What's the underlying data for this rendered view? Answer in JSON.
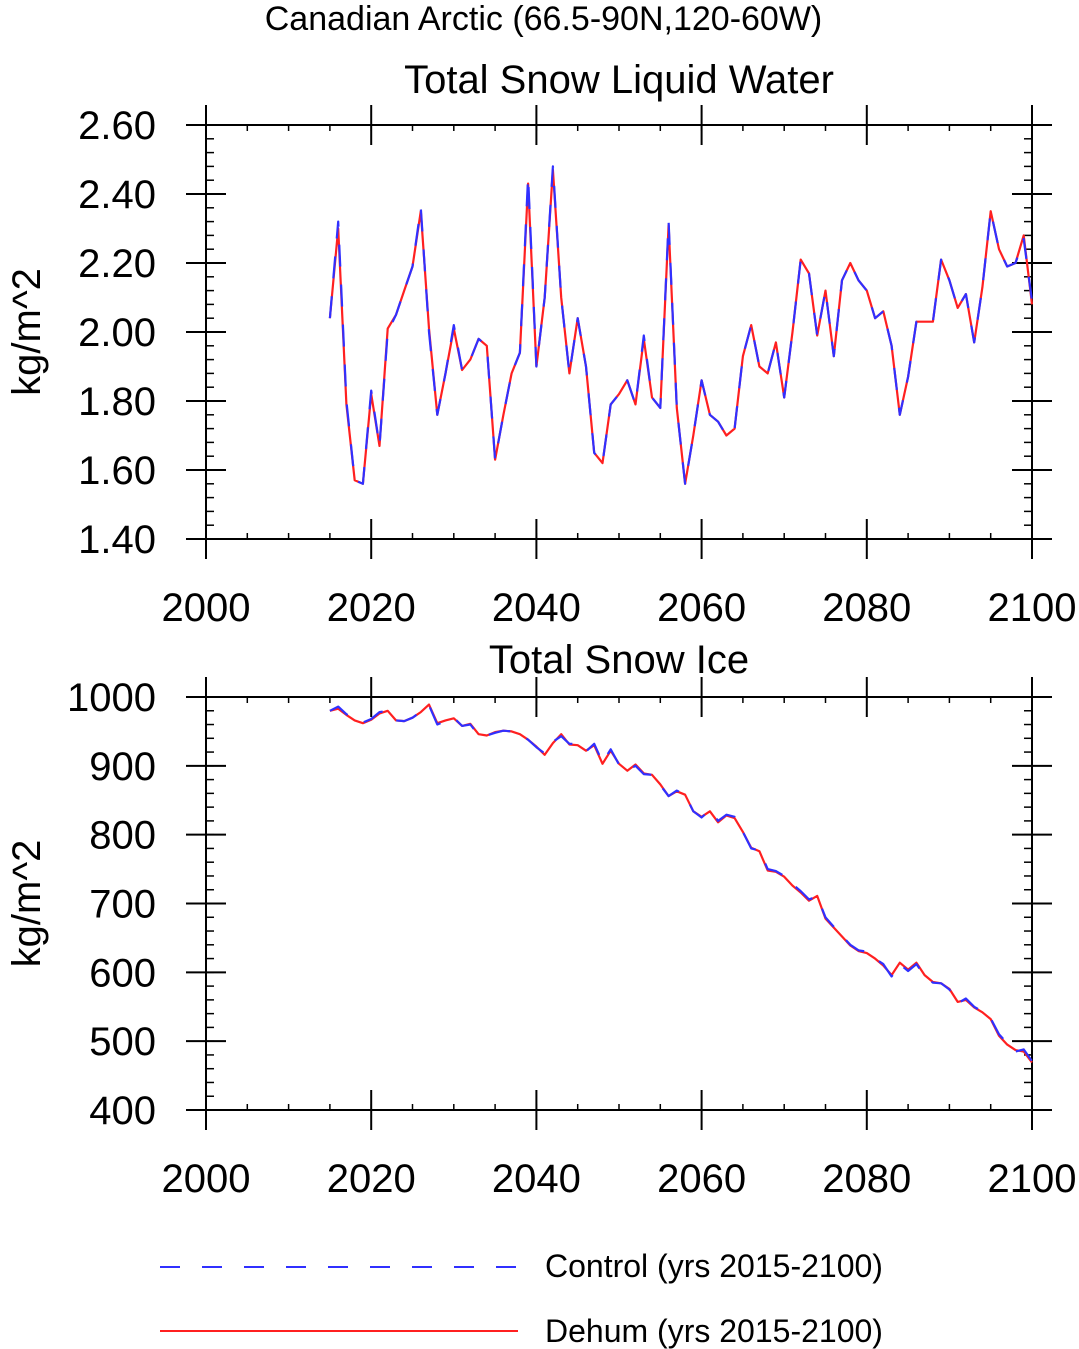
{
  "page_title": "Canadian Arctic (66.5-90N,120-60W)",
  "colors": {
    "control": "#3030ff",
    "dehum": "#ff2020"
  },
  "legend": [
    {
      "label": "Control (yrs 2015-2100)",
      "color": "#3030ff",
      "style": "dashed"
    },
    {
      "label": "Dehum (yrs 2015-2100)",
      "color": "#ff2020",
      "style": "solid"
    }
  ],
  "chart_data": [
    {
      "type": "line",
      "title": "Total Snow Liquid Water",
      "xlabel": "",
      "ylabel": "kg/m^2",
      "xlim": [
        2000,
        2100
      ],
      "ylim": [
        1.4,
        2.6
      ],
      "xticks": [
        2000,
        2020,
        2040,
        2060,
        2080,
        2100
      ],
      "yticks": [
        1.4,
        1.6,
        1.8,
        2.0,
        2.2,
        2.4,
        2.6
      ],
      "ytick_labels": [
        "1.40",
        "1.60",
        "1.80",
        "2.00",
        "2.20",
        "2.40",
        "2.60"
      ],
      "x": [
        2015,
        2016,
        2017,
        2018,
        2019,
        2020,
        2021,
        2022,
        2023,
        2024,
        2025,
        2026,
        2027,
        2028,
        2029,
        2030,
        2031,
        2032,
        2033,
        2034,
        2035,
        2036,
        2037,
        2038,
        2039,
        2040,
        2041,
        2042,
        2043,
        2044,
        2045,
        2046,
        2047,
        2048,
        2049,
        2050,
        2051,
        2052,
        2053,
        2054,
        2055,
        2056,
        2057,
        2058,
        2059,
        2060,
        2061,
        2062,
        2063,
        2064,
        2065,
        2066,
        2067,
        2068,
        2069,
        2070,
        2071,
        2072,
        2073,
        2074,
        2075,
        2076,
        2077,
        2078,
        2079,
        2080,
        2081,
        2082,
        2083,
        2084,
        2085,
        2086,
        2087,
        2088,
        2089,
        2090,
        2091,
        2092,
        2093,
        2094,
        2095,
        2096,
        2097,
        2098,
        2099,
        2100
      ],
      "series": [
        {
          "name": "Control (yrs 2015-2100)",
          "values": [
            2.04,
            2.32,
            1.8,
            1.57,
            1.56,
            1.83,
            1.67,
            2.0,
            2.05,
            2.12,
            2.19,
            2.36,
            2.0,
            1.76,
            1.88,
            2.02,
            1.89,
            1.92,
            1.98,
            1.96,
            1.63,
            1.76,
            1.88,
            1.94,
            2.45,
            1.9,
            2.1,
            2.48,
            2.1,
            1.88,
            2.04,
            1.9,
            1.65,
            1.62,
            1.79,
            1.82,
            1.86,
            1.79,
            1.99,
            1.81,
            1.78,
            2.32,
            1.78,
            1.56,
            1.7,
            1.86,
            1.76,
            1.74,
            1.7,
            1.72,
            1.93,
            2.02,
            1.9,
            1.88,
            1.97,
            1.81,
            2.0,
            2.21,
            2.17,
            1.99,
            2.12,
            1.93,
            2.15,
            2.2,
            2.15,
            2.12,
            2.04,
            2.06,
            1.96,
            1.76,
            1.87,
            2.03,
            2.03,
            2.03,
            2.21,
            2.15,
            2.07,
            2.11,
            1.97,
            2.13,
            2.35,
            2.24,
            2.19,
            2.2,
            2.27,
            2.09
          ]
        },
        {
          "name": "Dehum (yrs 2015-2100)",
          "values": [
            2.04,
            2.3,
            1.79,
            1.57,
            1.56,
            1.82,
            1.67,
            2.01,
            2.05,
            2.12,
            2.19,
            2.35,
            2.01,
            1.76,
            1.88,
            2.01,
            1.89,
            1.92,
            1.98,
            1.96,
            1.63,
            1.76,
            1.88,
            1.94,
            2.43,
            1.9,
            2.1,
            2.47,
            2.1,
            1.88,
            2.04,
            1.9,
            1.65,
            1.62,
            1.79,
            1.82,
            1.86,
            1.79,
            1.98,
            1.81,
            1.78,
            2.31,
            1.78,
            1.56,
            1.7,
            1.86,
            1.76,
            1.74,
            1.7,
            1.72,
            1.93,
            2.02,
            1.9,
            1.88,
            1.97,
            1.81,
            2.0,
            2.21,
            2.17,
            1.99,
            2.12,
            1.93,
            2.15,
            2.2,
            2.15,
            2.12,
            2.04,
            2.06,
            1.96,
            1.76,
            1.87,
            2.03,
            2.03,
            2.03,
            2.21,
            2.15,
            2.07,
            2.11,
            1.97,
            2.13,
            2.35,
            2.24,
            2.19,
            2.2,
            2.28,
            2.08
          ]
        }
      ]
    },
    {
      "type": "line",
      "title": "Total Snow Ice",
      "xlabel": "",
      "ylabel": "kg/m^2",
      "xlim": [
        2000,
        2100
      ],
      "ylim": [
        400,
        1000
      ],
      "xticks": [
        2000,
        2020,
        2040,
        2060,
        2080,
        2100
      ],
      "yticks": [
        400,
        500,
        600,
        700,
        800,
        900,
        1000
      ],
      "ytick_labels": [
        "400",
        "500",
        "600",
        "700",
        "800",
        "900",
        "1000"
      ],
      "x": [
        2015,
        2016,
        2017,
        2018,
        2019,
        2020,
        2021,
        2022,
        2023,
        2024,
        2025,
        2026,
        2027,
        2028,
        2029,
        2030,
        2031,
        2032,
        2033,
        2034,
        2035,
        2036,
        2037,
        2038,
        2039,
        2040,
        2041,
        2042,
        2043,
        2044,
        2045,
        2046,
        2047,
        2048,
        2049,
        2050,
        2051,
        2052,
        2053,
        2054,
        2055,
        2056,
        2057,
        2058,
        2059,
        2060,
        2061,
        2062,
        2063,
        2064,
        2065,
        2066,
        2067,
        2068,
        2069,
        2070,
        2071,
        2072,
        2073,
        2074,
        2075,
        2076,
        2077,
        2078,
        2079,
        2080,
        2081,
        2082,
        2083,
        2084,
        2085,
        2086,
        2087,
        2088,
        2089,
        2090,
        2091,
        2092,
        2093,
        2094,
        2095,
        2096,
        2097,
        2098,
        2099,
        2100
      ],
      "series": [
        {
          "name": "Control (yrs 2015-2100)",
          "values": [
            980,
            986,
            975,
            968,
            963,
            968,
            978,
            980,
            966,
            965,
            970,
            979,
            988,
            960,
            965,
            970,
            958,
            960,
            945,
            944,
            948,
            951,
            950,
            946,
            938,
            927,
            918,
            935,
            943,
            932,
            932,
            921,
            932,
            905,
            924,
            902,
            893,
            900,
            888,
            887,
            872,
            856,
            864,
            858,
            834,
            825,
            836,
            820,
            829,
            826,
            804,
            780,
            777,
            750,
            747,
            740,
            728,
            718,
            706,
            710,
            680,
            666,
            653,
            640,
            632,
            630,
            620,
            612,
            594,
            612,
            602,
            612,
            595,
            585,
            584,
            575,
            555,
            562,
            550,
            543,
            533,
            510,
            497,
            485,
            488,
            471
          ]
        },
        {
          "name": "Dehum (yrs 2015-2100)",
          "values": [
            980,
            983,
            974,
            966,
            962,
            967,
            976,
            980,
            966,
            965,
            970,
            978,
            989,
            962,
            966,
            969,
            958,
            961,
            946,
            944,
            949,
            951,
            950,
            946,
            938,
            928,
            916,
            933,
            946,
            931,
            930,
            922,
            930,
            903,
            922,
            903,
            893,
            902,
            889,
            887,
            873,
            856,
            863,
            858,
            834,
            826,
            834,
            818,
            828,
            824,
            804,
            781,
            776,
            748,
            746,
            739,
            726,
            716,
            704,
            711,
            678,
            665,
            652,
            639,
            631,
            628,
            620,
            610,
            596,
            614,
            604,
            614,
            596,
            586,
            584,
            576,
            557,
            560,
            549,
            542,
            532,
            508,
            495,
            487,
            485,
            469
          ]
        }
      ]
    }
  ]
}
